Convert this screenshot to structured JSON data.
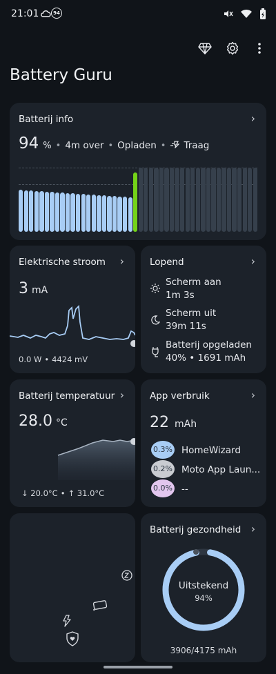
{
  "status": {
    "time": "21:01",
    "badge": "94"
  },
  "app": {
    "title": "Battery Guru"
  },
  "battery_info": {
    "title": "Batterij info",
    "percent": "94",
    "percent_unit": "%",
    "time_left": "4m over",
    "state": "Opladen",
    "speed": "Traag",
    "levels": [
      62,
      61,
      61,
      60,
      60,
      59,
      59,
      58,
      58,
      57,
      57,
      56,
      56,
      55,
      55,
      54,
      54,
      53,
      53,
      52,
      52,
      51
    ]
  },
  "current": {
    "title": "Elektrische stroom",
    "value": "3",
    "unit": "mA",
    "power": "0.0 W",
    "voltage": "4424 mV"
  },
  "running": {
    "title": "Lopend",
    "items": [
      {
        "label": "Scherm aan",
        "value": "1m 3s"
      },
      {
        "label": "Scherm uit",
        "value": "39m 11s"
      },
      {
        "label": "Batterij opgeladen",
        "value": "40% • 1691 mAh"
      }
    ]
  },
  "temperature": {
    "title": "Batterij temperatuur",
    "value": "28.0",
    "unit": "°C",
    "min": "↓ 20.0°C",
    "max": "↑ 31.0°C"
  },
  "app_usage": {
    "title": "App verbruik",
    "value": "22",
    "unit": "mAh",
    "apps": [
      {
        "pct": "0.3%",
        "name": "HomeWizard",
        "color": "#a8cdf5"
      },
      {
        "pct": "0.2%",
        "name": "Moto App Laun...",
        "color": "#c9ccd1"
      },
      {
        "pct": "0.0%",
        "name": "--",
        "color": "#e2c6ee"
      }
    ]
  },
  "health": {
    "title": "Batterij gezondheid",
    "label": "Uitstekend",
    "percent": "94%",
    "percent_value": 94,
    "capacity": "3906/4175 mAh"
  },
  "colors": {
    "card": "#1c222a",
    "bar_blue": "#a8cdf5",
    "bar_green": "#74d318",
    "ring": "#a8cdf5"
  }
}
